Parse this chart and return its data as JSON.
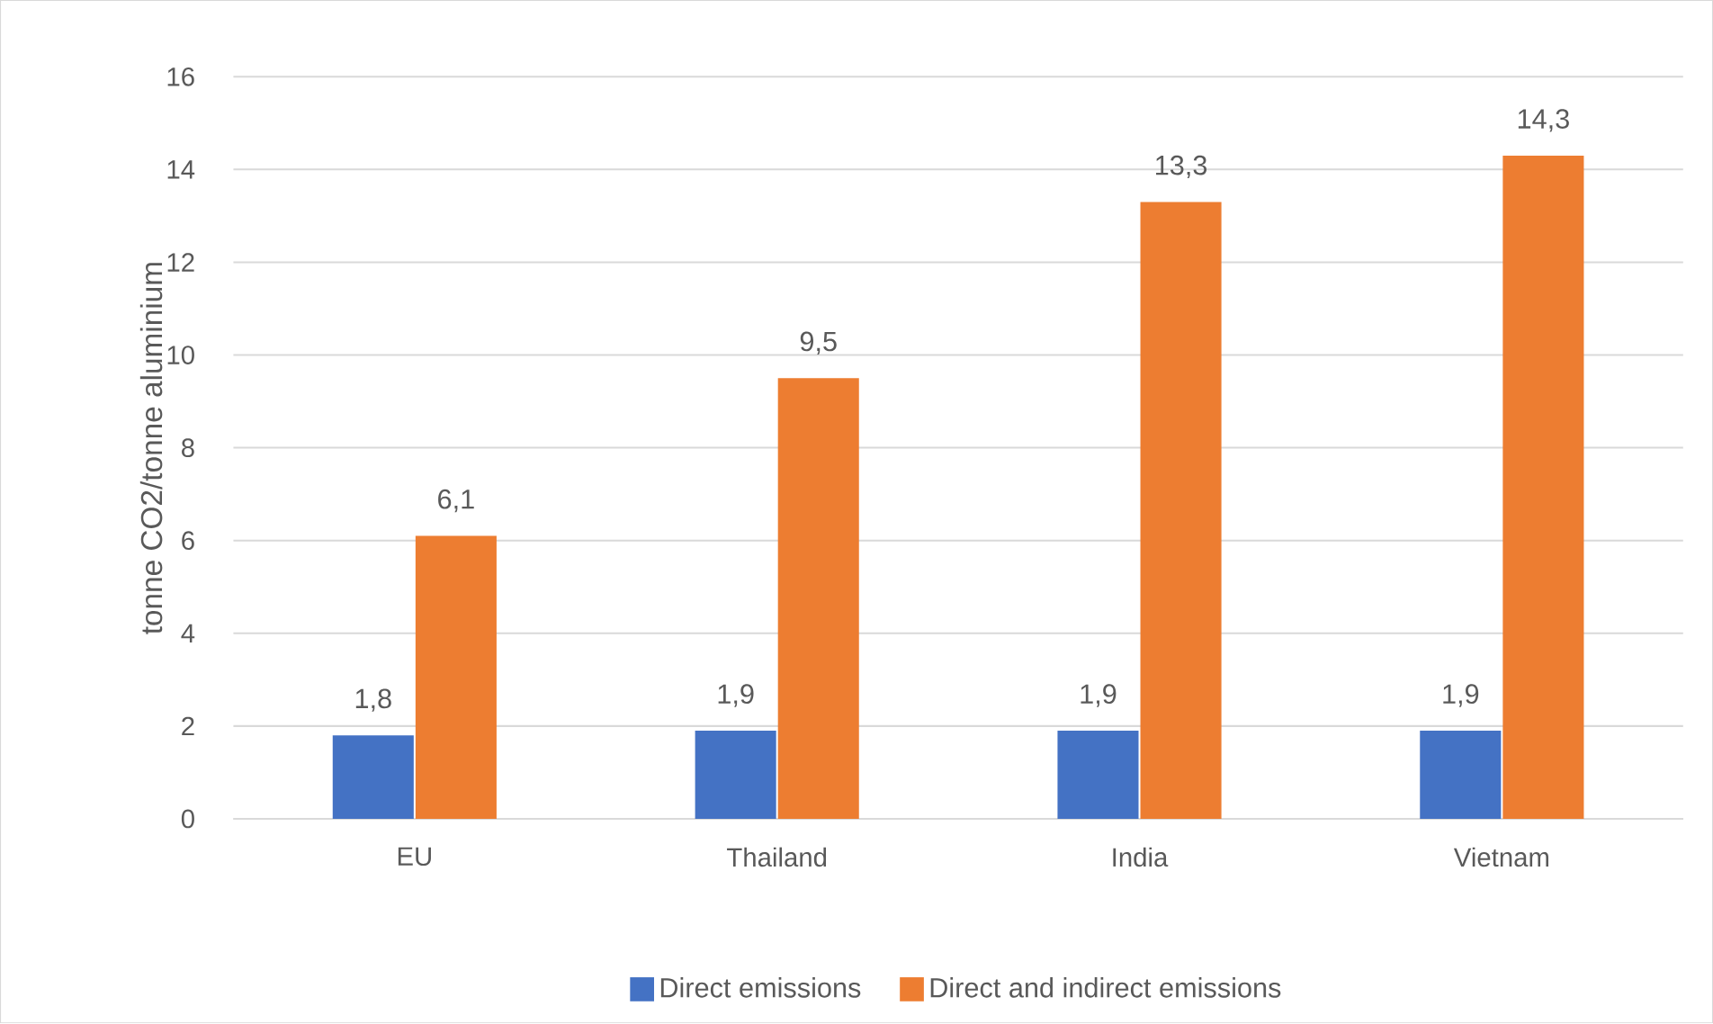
{
  "chart_data": {
    "type": "bar",
    "ylabel": "tonne CO2/tonne aluminium",
    "categories": [
      "EU",
      "Thailand",
      "India",
      "Vietnam"
    ],
    "series": [
      {
        "name": "Direct emissions",
        "color": "#4472c4",
        "values": [
          1.8,
          1.9,
          1.9,
          1.9
        ],
        "value_labels": [
          "1,8",
          "1,9",
          "1,9",
          "1,9"
        ]
      },
      {
        "name": "Direct and indirect emissions",
        "color": "#ed7d31",
        "values": [
          6.1,
          9.5,
          13.3,
          14.3
        ],
        "value_labels": [
          "6,1",
          "9,5",
          "13,3",
          "14,3"
        ]
      }
    ],
    "ylim": [
      0,
      16
    ],
    "yticks": [
      0,
      2,
      4,
      6,
      8,
      10,
      12,
      14,
      16
    ],
    "grid": "y",
    "legend": "bottom"
  }
}
